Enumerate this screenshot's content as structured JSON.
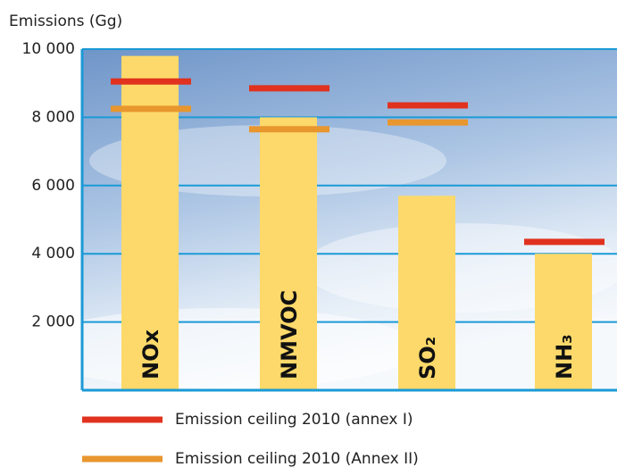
{
  "chart_data": {
    "type": "bar",
    "y_label": "Emissions (Gg)",
    "categories": [
      "NOx",
      "NMVOC",
      "SO₂",
      "NH₃"
    ],
    "values": [
      9800,
      8000,
      5700,
      4000
    ],
    "color": "#fcd96a",
    "series": [
      {
        "name": "Emission ceiling 2010 (annex I)",
        "color": "#e0321e",
        "values": [
          9050,
          8850,
          8350,
          4350
        ]
      },
      {
        "name": "Emission ceiling 2010 (Annex II)",
        "color": "#e8962e",
        "values": [
          8250,
          7650,
          7850,
          null
        ]
      }
    ],
    "ylim": [
      0,
      10000
    ],
    "yticks": [
      {
        "value": 2000,
        "label": "2 000"
      },
      {
        "value": 4000,
        "label": "4 000"
      },
      {
        "value": 6000,
        "label": "6 000"
      },
      {
        "value": 8000,
        "label": "8 000"
      },
      {
        "value": 10000,
        "label": "10 000"
      }
    ],
    "grid": true
  }
}
